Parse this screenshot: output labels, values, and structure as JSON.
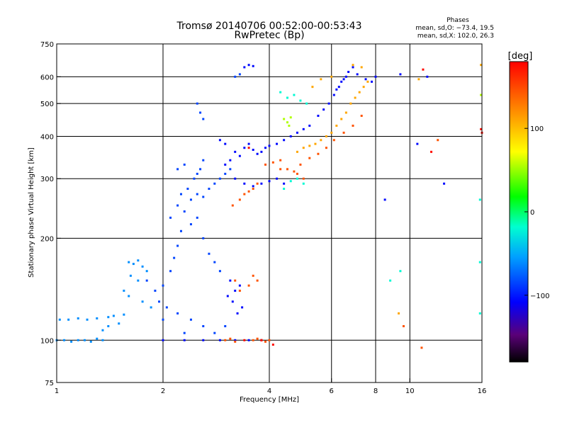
{
  "chart_data": {
    "type": "scatter",
    "title": "Tromsø 20140706 00:52:00-00:53:43",
    "subtitle": "RwPretec (Bp)",
    "xlabel": "Frequency [MHz]",
    "ylabel": "Stationary phase Virtual Height [km]",
    "xscale": "log",
    "yscale": "log",
    "xlim": [
      1,
      16
    ],
    "ylim": [
      75,
      750
    ],
    "xticks": [
      1,
      2,
      4,
      6,
      8,
      10,
      16
    ],
    "xtick_labels": [
      "1",
      "2",
      "4",
      "6",
      "8",
      "10",
      "16"
    ],
    "yticks": [
      75,
      100,
      200,
      300,
      400,
      500,
      600,
      750
    ],
    "ytick_labels": [
      "75",
      "100",
      "200",
      "300",
      "400",
      "500",
      "600",
      "750"
    ],
    "grid": true,
    "phase_stats": {
      "title": "Phases",
      "line1": "mean, sd,O: −73.4, 19.5",
      "line2": "mean, sd,X: 102.0, 26.3"
    },
    "colorbar": {
      "label": "[deg]",
      "ticks": [
        "100",
        "0",
        "−100"
      ],
      "tick_values": [
        100,
        0,
        -100
      ],
      "range": [
        -180,
        180
      ]
    },
    "series": [
      {
        "phase": -60,
        "points": [
          [
            1.0,
            100
          ],
          [
            1.05,
            100
          ],
          [
            1.1,
            99
          ],
          [
            1.15,
            100
          ],
          [
            1.2,
            100
          ],
          [
            1.25,
            99
          ],
          [
            1.3,
            101
          ],
          [
            1.35,
            100
          ],
          [
            1.02,
            115
          ],
          [
            1.08,
            115
          ],
          [
            1.15,
            116
          ],
          [
            1.22,
            115
          ],
          [
            1.3,
            116
          ],
          [
            1.4,
            117
          ],
          [
            1.45,
            118
          ],
          [
            1.4,
            110
          ],
          [
            1.35,
            107
          ],
          [
            1.5,
            112
          ],
          [
            1.55,
            119
          ],
          [
            1.6,
            170
          ],
          [
            1.65,
            168
          ],
          [
            1.7,
            172
          ],
          [
            1.75,
            165
          ],
          [
            1.8,
            160
          ],
          [
            1.62,
            155
          ],
          [
            1.7,
            150
          ],
          [
            1.55,
            140
          ],
          [
            1.6,
            135
          ],
          [
            1.75,
            130
          ],
          [
            1.85,
            125
          ]
        ]
      },
      {
        "phase": -85,
        "points": [
          [
            1.8,
            150
          ],
          [
            1.9,
            140
          ],
          [
            2.0,
            145
          ],
          [
            1.95,
            130
          ],
          [
            2.05,
            125
          ],
          [
            2.1,
            160
          ],
          [
            2.15,
            175
          ],
          [
            2.2,
            190
          ],
          [
            2.25,
            210
          ],
          [
            2.1,
            230
          ],
          [
            2.2,
            250
          ],
          [
            2.3,
            240
          ],
          [
            2.25,
            270
          ],
          [
            2.35,
            280
          ],
          [
            2.4,
            260
          ],
          [
            2.5,
            270
          ],
          [
            2.6,
            265
          ],
          [
            2.7,
            280
          ],
          [
            2.8,
            290
          ],
          [
            2.9,
            300
          ],
          [
            3.0,
            310
          ],
          [
            3.1,
            320
          ],
          [
            2.45,
            300
          ],
          [
            2.55,
            320
          ],
          [
            2.5,
            310
          ],
          [
            2.3,
            330
          ],
          [
            2.2,
            320
          ],
          [
            2.6,
            340
          ],
          [
            2.4,
            220
          ],
          [
            2.5,
            230
          ],
          [
            2.6,
            200
          ],
          [
            2.7,
            180
          ],
          [
            2.8,
            170
          ],
          [
            2.9,
            160
          ],
          [
            2.0,
            115
          ],
          [
            2.2,
            120
          ],
          [
            2.4,
            115
          ],
          [
            2.6,
            110
          ],
          [
            2.8,
            105
          ],
          [
            3.0,
            110
          ],
          [
            2.3,
            105
          ],
          [
            2.5,
            500
          ],
          [
            2.55,
            470
          ],
          [
            2.6,
            450
          ],
          [
            3.2,
            600
          ],
          [
            3.3,
            610
          ]
        ]
      },
      {
        "phase": -105,
        "points": [
          [
            3.0,
            330
          ],
          [
            3.1,
            340
          ],
          [
            3.2,
            360
          ],
          [
            3.3,
            350
          ],
          [
            3.4,
            370
          ],
          [
            3.5,
            380
          ],
          [
            3.6,
            365
          ],
          [
            3.7,
            355
          ],
          [
            3.8,
            360
          ],
          [
            3.9,
            370
          ],
          [
            4.0,
            375
          ],
          [
            4.2,
            380
          ],
          [
            4.4,
            390
          ],
          [
            4.6,
            400
          ],
          [
            4.8,
            410
          ],
          [
            5.0,
            420
          ],
          [
            5.2,
            430
          ],
          [
            5.5,
            460
          ],
          [
            5.7,
            480
          ],
          [
            5.9,
            500
          ],
          [
            6.1,
            530
          ],
          [
            6.3,
            560
          ],
          [
            6.5,
            590
          ],
          [
            6.7,
            620
          ],
          [
            6.9,
            640
          ],
          [
            7.1,
            610
          ],
          [
            3.1,
            150
          ],
          [
            3.2,
            140
          ],
          [
            3.3,
            145
          ],
          [
            3.15,
            130
          ],
          [
            3.25,
            120
          ],
          [
            3.35,
            125
          ],
          [
            3.05,
            135
          ],
          [
            3.4,
            640
          ],
          [
            3.5,
            650
          ],
          [
            3.6,
            645
          ],
          [
            2.9,
            390
          ],
          [
            3.0,
            380
          ],
          [
            3.2,
            300
          ],
          [
            3.4,
            290
          ],
          [
            3.6,
            285
          ],
          [
            3.8,
            290
          ],
          [
            4.0,
            295
          ],
          [
            4.2,
            300
          ],
          [
            4.4,
            290
          ],
          [
            2.0,
            100
          ],
          [
            2.3,
            100
          ],
          [
            2.6,
            100
          ],
          [
            2.9,
            100
          ],
          [
            3.2,
            100
          ],
          [
            3.5,
            100
          ],
          [
            3.8,
            100
          ],
          [
            6.4,
            580
          ],
          [
            6.6,
            600
          ],
          [
            6.2,
            550
          ],
          [
            7.5,
            590
          ],
          [
            7.8,
            580
          ],
          [
            8.0,
            600
          ],
          [
            9.4,
            610
          ],
          [
            11.2,
            600
          ],
          [
            10.5,
            380
          ],
          [
            12.5,
            290
          ],
          [
            8.5,
            260
          ]
        ]
      },
      {
        "phase": -20,
        "points": [
          [
            4.3,
            540
          ],
          [
            4.5,
            520
          ],
          [
            4.7,
            530
          ],
          [
            4.9,
            510
          ],
          [
            5.1,
            500
          ],
          [
            4.4,
            280
          ],
          [
            4.6,
            295
          ],
          [
            4.8,
            300
          ],
          [
            5.0,
            290
          ],
          [
            15.8,
            120
          ],
          [
            15.8,
            260
          ],
          [
            15.8,
            170
          ],
          [
            9.4,
            160
          ],
          [
            8.8,
            150
          ]
        ]
      },
      {
        "phase": 55,
        "points": [
          [
            4.4,
            450
          ],
          [
            4.5,
            440
          ],
          [
            4.6,
            455
          ],
          [
            4.55,
            430
          ],
          [
            15.9,
            530
          ]
        ]
      },
      {
        "phase": 110,
        "points": [
          [
            4.8,
            360
          ],
          [
            5.0,
            370
          ],
          [
            5.2,
            375
          ],
          [
            5.4,
            380
          ],
          [
            5.6,
            390
          ],
          [
            5.8,
            400
          ],
          [
            6.0,
            410
          ],
          [
            6.2,
            430
          ],
          [
            6.4,
            450
          ],
          [
            6.6,
            470
          ],
          [
            6.8,
            500
          ],
          [
            7.0,
            520
          ],
          [
            7.2,
            540
          ],
          [
            7.4,
            560
          ],
          [
            7.6,
            580
          ],
          [
            5.3,
            560
          ],
          [
            5.6,
            590
          ],
          [
            6.0,
            600
          ],
          [
            6.9,
            650
          ],
          [
            7.3,
            640
          ],
          [
            9.3,
            120
          ],
          [
            10.6,
            590
          ],
          [
            15.9,
            650
          ]
        ]
      },
      {
        "phase": 145,
        "points": [
          [
            3.15,
            250
          ],
          [
            3.3,
            260
          ],
          [
            3.4,
            270
          ],
          [
            3.5,
            275
          ],
          [
            3.6,
            280
          ],
          [
            3.7,
            290
          ],
          [
            3.9,
            330
          ],
          [
            4.1,
            335
          ],
          [
            4.3,
            340
          ],
          [
            4.5,
            320
          ],
          [
            4.7,
            315
          ],
          [
            4.9,
            330
          ],
          [
            5.2,
            345
          ],
          [
            5.5,
            355
          ],
          [
            5.8,
            370
          ],
          [
            6.1,
            390
          ],
          [
            6.5,
            410
          ],
          [
            6.9,
            430
          ],
          [
            7.3,
            460
          ],
          [
            3.2,
            150
          ],
          [
            3.3,
            140
          ],
          [
            3.5,
            145
          ],
          [
            3.6,
            155
          ],
          [
            3.7,
            150
          ],
          [
            3.0,
            100
          ],
          [
            3.1,
            101
          ],
          [
            3.2,
            99
          ],
          [
            3.6,
            100
          ],
          [
            3.7,
            101
          ],
          [
            3.8,
            100
          ],
          [
            3.9,
            99
          ],
          [
            4.0,
            100
          ],
          [
            4.3,
            320
          ],
          [
            4.8,
            310
          ],
          [
            5.0,
            300
          ],
          [
            9.6,
            110
          ],
          [
            12.0,
            390
          ],
          [
            10.8,
            95
          ]
        ]
      },
      {
        "phase": 175,
        "points": [
          [
            3.5,
            370
          ],
          [
            3.8,
            100
          ],
          [
            4.1,
            97
          ],
          [
            3.4,
            100
          ],
          [
            10.9,
            630
          ],
          [
            11.5,
            360
          ],
          [
            15.9,
            420
          ],
          [
            16.0,
            410
          ]
        ]
      }
    ]
  }
}
